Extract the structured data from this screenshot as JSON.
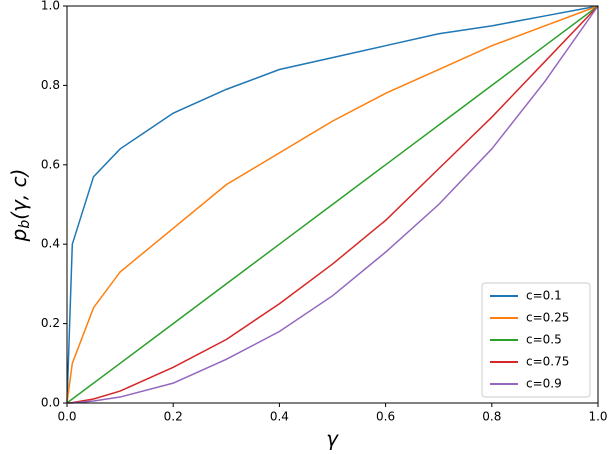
{
  "chart_data": {
    "type": "line",
    "xlabel": "γ",
    "ylabel": {
      "base": "p",
      "sub": "b",
      "rest": "(γ, c)"
    },
    "x": [
      0,
      0.01,
      0.05,
      0.1,
      0.2,
      0.3,
      0.4,
      0.5,
      0.6,
      0.7,
      0.8,
      0.9,
      1
    ],
    "series": [
      {
        "name": "c=0.1",
        "color": "#1f77b4",
        "values": [
          0,
          0.4,
          0.57,
          0.64,
          0.73,
          0.79,
          0.84,
          0.87,
          0.9,
          0.93,
          0.95,
          0.975,
          1
        ]
      },
      {
        "name": "c=0.25",
        "color": "#ff7f0e",
        "values": [
          0,
          0.1,
          0.24,
          0.33,
          0.44,
          0.55,
          0.63,
          0.71,
          0.78,
          0.84,
          0.9,
          0.95,
          1
        ]
      },
      {
        "name": "c=0.5",
        "color": "#2ca02c",
        "values": [
          0,
          0.01,
          0.05,
          0.1,
          0.2,
          0.3,
          0.4,
          0.5,
          0.6,
          0.7,
          0.8,
          0.9,
          1
        ]
      },
      {
        "name": "c=0.75",
        "color": "#d62728",
        "values": [
          0,
          0.001,
          0.01,
          0.03,
          0.09,
          0.16,
          0.25,
          0.35,
          0.46,
          0.59,
          0.72,
          0.86,
          1
        ]
      },
      {
        "name": "c=0.9",
        "color": "#9467bd",
        "values": [
          0,
          0,
          0.005,
          0.015,
          0.05,
          0.11,
          0.18,
          0.27,
          0.38,
          0.5,
          0.64,
          0.81,
          1
        ]
      }
    ],
    "xlim": [
      0,
      1
    ],
    "ylim": [
      0,
      1
    ],
    "xticks": [
      {
        "value": 0,
        "label": "0.0"
      },
      0.2,
      0.4,
      0.6,
      0.8,
      {
        "value": 1,
        "label": "1.0"
      }
    ],
    "yticks": [
      {
        "value": 0,
        "label": "0.0"
      },
      0.2,
      0.4,
      0.6,
      0.8,
      {
        "value": 1,
        "label": "1.0"
      }
    ],
    "legend": "lower right"
  }
}
